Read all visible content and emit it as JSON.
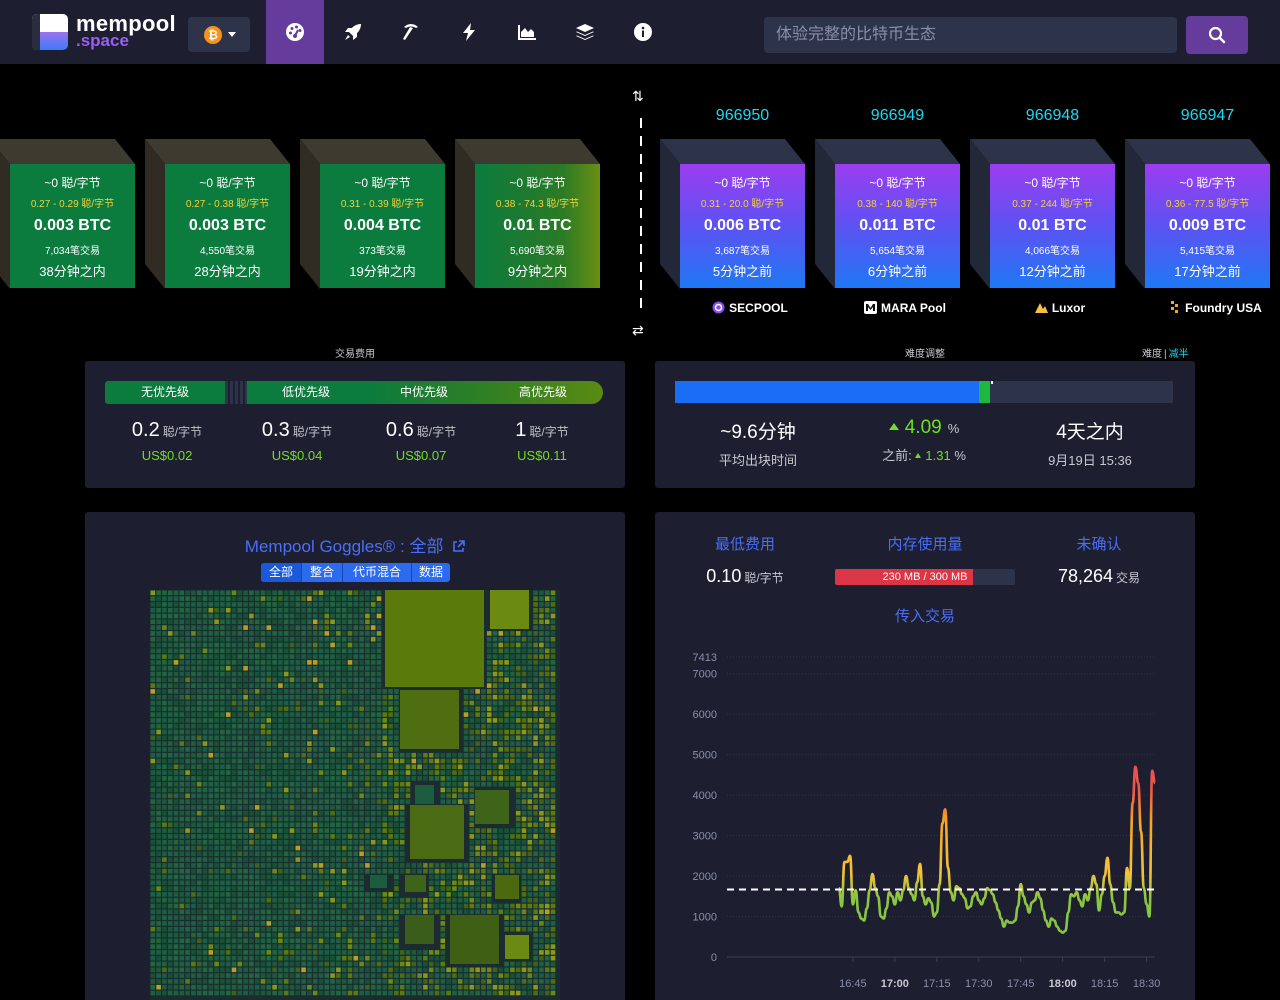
{
  "header": {
    "logo_top": "mempool",
    "logo_bottom": ".space",
    "network": "bitcoin",
    "nav_icons": [
      "dashboard-icon",
      "rocket-icon",
      "mining-icon",
      "lightning-icon",
      "graphs-icon",
      "docs-icon",
      "about-icon"
    ],
    "search_placeholder": "体验完整的比特币生态"
  },
  "projected_blocks": [
    {
      "fee_avg": "~0 聪/字节",
      "fee_range": "0.27 - 0.29 聪/字节",
      "size": "0.003 BTC",
      "tx": "7,034笔交易",
      "time": "38分钟之内"
    },
    {
      "fee_avg": "~0 聪/字节",
      "fee_range": "0.27 - 0.38 聪/字节",
      "size": "0.003 BTC",
      "tx": "4,550笔交易",
      "time": "28分钟之内"
    },
    {
      "fee_avg": "~0 聪/字节",
      "fee_range": "0.31 - 0.39 聪/字节",
      "size": "0.004 BTC",
      "tx": "373笔交易",
      "time": "19分钟之内"
    },
    {
      "fee_avg": "~0 聪/字节",
      "fee_range": "0.38 - 74.3 聪/字节",
      "size": "0.01 BTC",
      "tx": "5,690笔交易",
      "time": "9分钟之内"
    }
  ],
  "mined_blocks": [
    {
      "height": "966950",
      "fee_avg": "~0 聪/字节",
      "fee_range": "0.31 - 20.0 聪/字节",
      "size": "0.006 BTC",
      "tx": "3,687笔交易",
      "time": "5分钟之前",
      "pool": "SECPOOL"
    },
    {
      "height": "966949",
      "fee_avg": "~0 聪/字节",
      "fee_range": "0.38 - 140 聪/字节",
      "size": "0.011 BTC",
      "tx": "5,654笔交易",
      "time": "6分钟之前",
      "pool": "MARA Pool"
    },
    {
      "height": "966948",
      "fee_avg": "~0 聪/字节",
      "fee_range": "0.37 - 244 聪/字节",
      "size": "0.01 BTC",
      "tx": "4,066笔交易",
      "time": "12分钟之前",
      "pool": "Luxor"
    },
    {
      "height": "966947",
      "fee_avg": "~0 聪/字节",
      "fee_range": "0.36 - 77.5 聪/字节",
      "size": "0.009 BTC",
      "tx": "5,415笔交易",
      "time": "17分钟之前",
      "pool": "Foundry USA"
    }
  ],
  "fees": {
    "title": "交易费用",
    "priorities": [
      "无优先级",
      "低优先级",
      "中优先级",
      "高优先级"
    ],
    "values": [
      "0.2",
      "0.3",
      "0.6",
      "1"
    ],
    "unit": "聪/字节",
    "usd": [
      "US$0.02",
      "US$0.04",
      "US$0.07",
      "US$0.11"
    ]
  },
  "difficulty": {
    "title": "难度调整",
    "toggle_left": "难度",
    "toggle_sep": "|",
    "toggle_right": "减半",
    "progress": 0.61,
    "avg_block_time": "~9.6分钟",
    "avg_block_time_label": "平均出块时间",
    "change": "4.09",
    "change_unit": "%",
    "previous_label": "之前:",
    "previous": "1.31",
    "previous_unit": "%",
    "eta": "4天之内",
    "eta_date": "9月19日 15:36"
  },
  "goggles": {
    "title": "Mempool Goggles® : 全部",
    "tabs": [
      "全部",
      "整合",
      "代币混合",
      "数据"
    ]
  },
  "mempool_stats": {
    "min_fee_label": "最低费用",
    "min_fee": "0.10",
    "min_fee_unit": "聪/字节",
    "memory_label": "内存使用量",
    "memory": "230 MB / 300 MB",
    "memory_fraction": 0.767,
    "unconfirmed_label": "未确认",
    "unconfirmed": "78,264",
    "unconfirmed_unit": "交易",
    "incoming_title": "传入交易"
  },
  "chart_data": {
    "type": "line",
    "title": "传入交易",
    "x_ticks": [
      "16:45",
      "17:00",
      "17:15",
      "17:30",
      "17:45",
      "18:00",
      "18:15",
      "18:30"
    ],
    "y_ticks": [
      "0",
      "1000",
      "2000",
      "3000",
      "4000",
      "5000",
      "6000",
      "7000",
      "7413"
    ],
    "ylim": [
      0,
      7413
    ],
    "reference_line": 1667,
    "x_minutes": [
      40,
      41,
      42,
      43,
      44,
      45,
      46,
      47,
      48,
      49,
      50,
      51,
      52,
      53,
      54,
      55,
      56,
      57,
      58,
      59,
      60,
      61,
      62,
      63,
      64,
      65,
      66,
      67,
      68,
      69,
      70,
      71,
      72,
      73,
      74,
      75,
      76,
      77,
      78,
      79,
      80,
      81,
      82,
      83,
      84,
      85,
      86,
      87,
      88,
      89,
      90,
      91,
      92,
      93,
      94,
      95,
      96,
      97,
      98,
      99,
      100,
      101,
      102,
      103,
      104,
      105,
      106,
      107,
      108,
      109,
      110,
      111,
      112,
      113,
      114,
      115,
      116,
      117,
      118,
      119,
      120,
      121,
      122,
      123,
      124,
      125,
      126,
      127,
      128,
      129,
      130,
      131,
      132,
      133,
      134,
      135,
      136,
      137,
      138,
      139,
      140,
      141,
      142,
      143,
      144,
      145,
      146,
      147,
      148,
      149,
      150,
      151,
      152,
      153
    ],
    "values": [
      1700,
      1250,
      2350,
      2350,
      2500,
      1300,
      1650,
      1100,
      950,
      900,
      1200,
      1650,
      2050,
      1700,
      1500,
      1000,
      950,
      1200,
      1600,
      1500,
      1300,
      1600,
      1400,
      1650,
      2000,
      1700,
      1550,
      1400,
      1850,
      2300,
      1500,
      1300,
      1450,
      1350,
      1000,
      1100,
      1800,
      3300,
      3650,
      2200,
      1600,
      1400,
      1750,
      1700,
      1550,
      1450,
      1200,
      1250,
      1500,
      1600,
      1400,
      1300,
      1450,
      1700,
      1650,
      1550,
      1350,
      1150,
      950,
      750,
      900,
      850,
      850,
      900,
      1250,
      1800,
      1500,
      1300,
      1100,
      1350,
      1400,
      1600,
      1450,
      1150,
      900,
      750,
      950,
      900,
      750,
      650,
      600,
      650,
      1100,
      1550,
      1500,
      1600,
      1400,
      1250,
      1550,
      1400,
      1700,
      2000,
      1800,
      1150,
      1550,
      2000,
      2450,
      1800,
      1350,
      1100,
      1100,
      1050,
      1100,
      2200,
      1700,
      3800,
      4700,
      4300,
      3100,
      1700,
      1300,
      1000,
      4600,
      4300
    ]
  }
}
